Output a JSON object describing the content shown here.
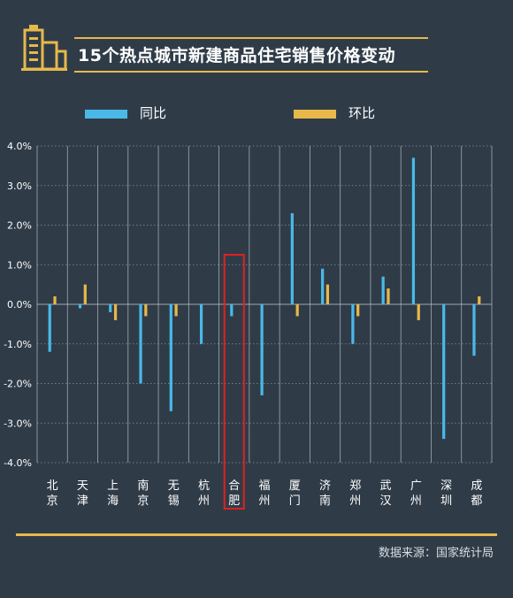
{
  "header": {
    "title": "15个热点城市新建商品住宅销售价格变动"
  },
  "legend": {
    "yoy_label": "同比",
    "mom_label": "环比"
  },
  "footer": {
    "source": "数据来源：国家统计局"
  },
  "colors": {
    "background": "#2f3c48",
    "yoy": "#4ab9e8",
    "mom": "#e8b84a",
    "highlight": "#e02020",
    "accent_line": "#e8b84a"
  },
  "chart_data": {
    "type": "bar",
    "categories": [
      "北京",
      "天津",
      "上海",
      "南京",
      "无锡",
      "杭州",
      "合肥",
      "福州",
      "厦门",
      "济南",
      "郑州",
      "武汉",
      "广州",
      "深圳",
      "成都"
    ],
    "category_labels": [
      [
        "北",
        "京"
      ],
      [
        "天",
        "津"
      ],
      [
        "上",
        "海"
      ],
      [
        "南",
        "京"
      ],
      [
        "无",
        "锡"
      ],
      [
        "杭",
        "州"
      ],
      [
        "合",
        "肥"
      ],
      [
        "福",
        "州"
      ],
      [
        "厦",
        "门"
      ],
      [
        "济",
        "南"
      ],
      [
        "郑",
        "州"
      ],
      [
        "武",
        "汉"
      ],
      [
        "广",
        "州"
      ],
      [
        "深",
        "圳"
      ],
      [
        "成",
        "都"
      ]
    ],
    "series": [
      {
        "name": "同比",
        "values": [
          -1.2,
          -0.1,
          -0.2,
          -2.0,
          -2.7,
          -1.0,
          -0.3,
          -2.3,
          2.3,
          0.9,
          -1.0,
          0.7,
          3.7,
          -3.4,
          -1.3
        ]
      },
      {
        "name": "环比",
        "values": [
          0.2,
          0.5,
          -0.4,
          -0.3,
          -0.3,
          0.0,
          0.0,
          0.0,
          -0.3,
          0.5,
          -0.3,
          0.4,
          -0.4,
          0.0,
          0.2
        ]
      }
    ],
    "ylim": [
      -4.0,
      4.0
    ],
    "yticks": [
      "4.0%",
      "3.0%",
      "2.0%",
      "1.0%",
      "0.0%",
      "-1.0%",
      "-2.0%",
      "-3.0%",
      "-4.0%"
    ],
    "highlight_category": "合肥",
    "grid": true,
    "legend_position": "top"
  }
}
